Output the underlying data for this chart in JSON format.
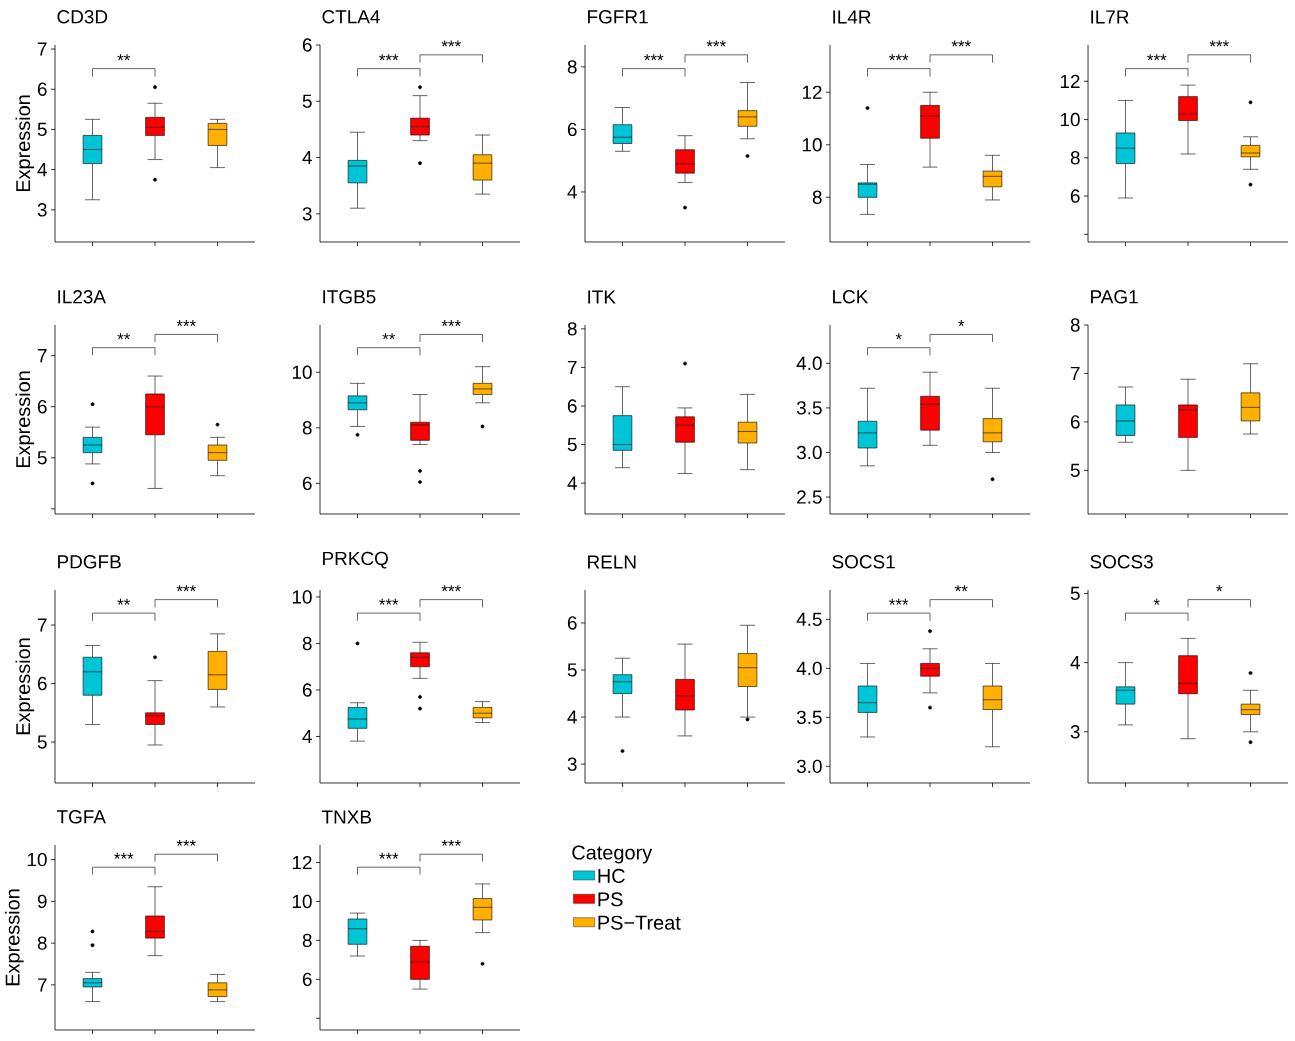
{
  "chart_data": [
    {
      "type": "box",
      "title": "CD3D",
      "ylabel": "Expression",
      "categories": [
        null,
        null,
        null
      ],
      "tick_labels": "y",
      "ylim": [
        2.2,
        7.1
      ],
      "yticks": [
        3,
        4,
        5,
        6,
        7
      ],
      "annotations": [
        "**"
      ],
      "series": [
        {
          "color": "#00c5d6",
          "boxes": [
            {
              "low": 3.25,
              "q1": 4.15,
              "median": 4.5,
              "q3": 4.85,
              "high": 5.25
            },
            null,
            null
          ]
        },
        {
          "color": "#ff0000",
          "boxes": [
            null,
            {
              "low": 4.25,
              "q1": 4.85,
              "median": 5.05,
              "q3": 5.3,
              "high": 5.65,
              "outliers": [
                6.05,
                3.75
              ]
            },
            null
          ]
        },
        {
          "color": "#ffb000",
          "boxes": [
            null,
            null,
            {
              "low": 4.05,
              "q1": 4.6,
              "median": 5.0,
              "q3": 5.15,
              "high": 5.25
            }
          ]
        }
      ]
    },
    {
      "type": "box",
      "title": "CTLA4",
      "categories": [
        null,
        null,
        null
      ],
      "tick_labels": "y",
      "ylim": [
        2.5,
        6.0
      ],
      "yticks": [
        3,
        4,
        5,
        6
      ],
      "annotations": [
        "***",
        "***"
      ],
      "series": [
        {
          "color": "#00c5d6",
          "boxes": [
            {
              "low": 3.1,
              "q1": 3.55,
              "median": 3.85,
              "q3": 3.95,
              "high": 4.45
            },
            null,
            null
          ]
        },
        {
          "color": "#ff0000",
          "boxes": [
            null,
            {
              "low": 4.3,
              "q1": 4.4,
              "median": 4.55,
              "q3": 4.7,
              "high": 5.1,
              "outliers": [
                5.25,
                3.9
              ]
            },
            null
          ]
        },
        {
          "color": "#ffb000",
          "boxes": [
            null,
            null,
            {
              "low": 3.35,
              "q1": 3.6,
              "median": 3.9,
              "q3": 4.05,
              "high": 4.4
            }
          ]
        }
      ]
    },
    {
      "type": "box",
      "title": "FGFR1",
      "categories": [
        null,
        null,
        null
      ],
      "tick_labels": "y",
      "ylim": [
        2.4,
        8.7
      ],
      "yticks": [
        4,
        6,
        8
      ],
      "annotations": [
        "***",
        "***"
      ],
      "series": [
        {
          "color": "#00c5d6",
          "boxes": [
            {
              "low": 5.3,
              "q1": 5.55,
              "median": 5.75,
              "q3": 6.15,
              "high": 6.7
            },
            null,
            null
          ]
        },
        {
          "color": "#ff0000",
          "boxes": [
            null,
            {
              "low": 4.3,
              "q1": 4.6,
              "median": 4.9,
              "q3": 5.35,
              "high": 5.8,
              "outliers": [
                3.5
              ]
            },
            null
          ]
        },
        {
          "color": "#ffb000",
          "boxes": [
            null,
            null,
            {
              "low": 5.7,
              "q1": 6.1,
              "median": 6.4,
              "q3": 6.6,
              "high": 7.5,
              "outliers": [
                5.15
              ]
            }
          ]
        }
      ]
    },
    {
      "type": "box",
      "title": "IL4R",
      "categories": [
        null,
        null,
        null
      ],
      "tick_labels": "y",
      "ylim": [
        6.3,
        13.8
      ],
      "yticks": [
        8,
        10,
        12
      ],
      "annotations": [
        "***",
        "***"
      ],
      "series": [
        {
          "color": "#00c5d6",
          "boxes": [
            {
              "low": 7.35,
              "q1": 8.0,
              "median": 8.5,
              "q3": 8.55,
              "high": 9.25,
              "outliers": [
                11.4
              ]
            },
            null,
            null
          ]
        },
        {
          "color": "#ff0000",
          "boxes": [
            null,
            {
              "low": 9.15,
              "q1": 10.25,
              "median": 11.1,
              "q3": 11.5,
              "high": 12.0
            },
            null
          ]
        },
        {
          "color": "#ffb000",
          "boxes": [
            null,
            null,
            {
              "low": 7.9,
              "q1": 8.4,
              "median": 8.8,
              "q3": 9.0,
              "high": 9.6
            }
          ]
        }
      ]
    },
    {
      "type": "box",
      "title": "IL7R",
      "categories": [
        null,
        null,
        null
      ],
      "tick_labels": "y",
      "ylim": [
        3.6,
        13.9
      ],
      "yticks": [
        {
          "value": 4,
          "label": null
        },
        6,
        8,
        10,
        12
      ],
      "annotations": [
        "***",
        "***"
      ],
      "series": [
        {
          "color": "#00c5d6",
          "boxes": [
            {
              "low": 5.9,
              "q1": 7.7,
              "median": 8.5,
              "q3": 9.3,
              "high": 11.0
            },
            null,
            null
          ]
        },
        {
          "color": "#ff0000",
          "boxes": [
            null,
            {
              "low": 8.2,
              "q1": 9.95,
              "median": 10.3,
              "q3": 11.2,
              "high": 11.8
            },
            null
          ]
        },
        {
          "color": "#ffb000",
          "boxes": [
            null,
            null,
            {
              "low": 7.4,
              "q1": 8.05,
              "median": 8.25,
              "q3": 8.65,
              "high": 9.1,
              "outliers": [
                10.9,
                6.6
              ]
            }
          ]
        }
      ]
    },
    {
      "type": "box",
      "title": "IL23A",
      "ylabel": "Expression",
      "categories": [
        null,
        null,
        null
      ],
      "tick_labels": "y",
      "ylim": [
        3.9,
        7.6
      ],
      "yticks": [
        {
          "value": 4,
          "label": null
        },
        5,
        6,
        7
      ],
      "annotations": [
        "**",
        "***"
      ],
      "series": [
        {
          "color": "#00c5d6",
          "boxes": [
            {
              "low": 4.88,
              "q1": 5.1,
              "median": 5.25,
              "q3": 5.4,
              "high": 5.6,
              "outliers": [
                6.05,
                4.5
              ]
            },
            null,
            null
          ]
        },
        {
          "color": "#ff0000",
          "boxes": [
            null,
            {
              "low": 4.4,
              "q1": 5.45,
              "median": 6.0,
              "q3": 6.25,
              "high": 6.6
            },
            null
          ]
        },
        {
          "color": "#ffb000",
          "boxes": [
            null,
            null,
            {
              "low": 4.65,
              "q1": 4.95,
              "median": 5.1,
              "q3": 5.25,
              "high": 5.4,
              "outliers": [
                5.65
              ]
            }
          ]
        }
      ]
    },
    {
      "type": "box",
      "title": "ITGB5",
      "categories": [
        null,
        null,
        null
      ],
      "tick_labels": "y",
      "ylim": [
        4.9,
        11.7
      ],
      "yticks": [
        6,
        8,
        10
      ],
      "annotations": [
        "**",
        "***"
      ],
      "series": [
        {
          "color": "#00c5d6",
          "boxes": [
            {
              "low": 8.05,
              "q1": 8.65,
              "median": 8.9,
              "q3": 9.15,
              "high": 9.6,
              "outliers": [
                7.75
              ]
            },
            null,
            null
          ]
        },
        {
          "color": "#ff0000",
          "boxes": [
            null,
            {
              "low": 7.4,
              "q1": 7.55,
              "median": 8.1,
              "q3": 8.2,
              "high": 9.2,
              "outliers": [
                6.45,
                6.05
              ]
            },
            null
          ]
        },
        {
          "color": "#ffb000",
          "boxes": [
            null,
            null,
            {
              "low": 8.9,
              "q1": 9.2,
              "median": 9.4,
              "q3": 9.6,
              "high": 10.2,
              "outliers": [
                8.05
              ]
            }
          ]
        }
      ]
    },
    {
      "type": "box",
      "title": "ITK",
      "categories": [
        null,
        null,
        null
      ],
      "tick_labels": "y",
      "ylim": [
        3.2,
        8.1
      ],
      "yticks": [
        4,
        5,
        6,
        7,
        8
      ],
      "series": [
        {
          "color": "#00c5d6",
          "boxes": [
            {
              "low": 4.4,
              "q1": 4.85,
              "median": 5.0,
              "q3": 5.75,
              "high": 6.5
            },
            null,
            null
          ]
        },
        {
          "color": "#ff0000",
          "boxes": [
            null,
            {
              "low": 4.25,
              "q1": 5.06,
              "median": 5.5,
              "q3": 5.72,
              "high": 5.95,
              "outliers": [
                7.1
              ]
            },
            null
          ]
        },
        {
          "color": "#ffb000",
          "boxes": [
            null,
            null,
            {
              "low": 4.35,
              "q1": 5.04,
              "median": 5.34,
              "q3": 5.58,
              "high": 6.3
            }
          ]
        }
      ]
    },
    {
      "type": "box",
      "title": "LCK",
      "categories": [
        null,
        null,
        null
      ],
      "tick_labels": "y",
      "ylim": [
        2.31,
        4.43
      ],
      "yticks": [
        {
          "value": 2.5,
          "label": "2.5"
        },
        {
          "value": 3,
          "label": "3.0"
        },
        {
          "value": 3.5,
          "label": "3.5"
        },
        {
          "value": 4,
          "label": "4.0"
        }
      ],
      "annotations": [
        "*",
        "*"
      ],
      "series": [
        {
          "color": "#00c5d6",
          "boxes": [
            {
              "low": 2.85,
              "q1": 3.05,
              "median": 3.22,
              "q3": 3.35,
              "high": 3.72
            },
            null,
            null
          ]
        },
        {
          "color": "#ff0000",
          "boxes": [
            null,
            {
              "low": 3.08,
              "q1": 3.25,
              "median": 3.54,
              "q3": 3.63,
              "high": 3.9
            },
            null
          ]
        },
        {
          "color": "#ffb000",
          "boxes": [
            null,
            null,
            {
              "low": 3.0,
              "q1": 3.12,
              "median": 3.22,
              "q3": 3.38,
              "high": 3.72,
              "outliers": [
                2.7
              ]
            }
          ]
        }
      ]
    },
    {
      "type": "box",
      "title": "PAG1",
      "categories": [
        null,
        null,
        null
      ],
      "tick_labels": "y",
      "ylim": [
        4.1,
        8.0
      ],
      "yticks": [
        5,
        6,
        7,
        8
      ],
      "series": [
        {
          "color": "#00c5d6",
          "boxes": [
            {
              "low": 5.58,
              "q1": 5.72,
              "median": 6.02,
              "q3": 6.35,
              "high": 6.72
            },
            null,
            null
          ]
        },
        {
          "color": "#ff0000",
          "boxes": [
            null,
            {
              "low": 5.0,
              "q1": 5.68,
              "median": 6.25,
              "q3": 6.35,
              "high": 6.88
            },
            null
          ]
        },
        {
          "color": "#ffb000",
          "boxes": [
            null,
            null,
            {
              "low": 5.75,
              "q1": 6.02,
              "median": 6.3,
              "q3": 6.6,
              "high": 7.2
            }
          ]
        }
      ]
    },
    {
      "type": "box",
      "title": "PDGFB",
      "ylabel": "Expression",
      "categories": [
        null,
        null,
        null
      ],
      "tick_labels": "y",
      "ylim": [
        4.3,
        7.6
      ],
      "yticks": [
        5,
        6,
        7
      ],
      "annotations": [
        "**",
        "***"
      ],
      "series": [
        {
          "color": "#00c5d6",
          "boxes": [
            {
              "low": 5.3,
              "q1": 5.8,
              "median": 6.2,
              "q3": 6.45,
              "high": 6.65
            },
            null,
            null
          ]
        },
        {
          "color": "#ff0000",
          "boxes": [
            null,
            {
              "low": 4.95,
              "q1": 5.3,
              "median": 5.45,
              "q3": 5.5,
              "high": 6.05,
              "outliers": [
                6.45
              ]
            },
            null
          ]
        },
        {
          "color": "#ffb000",
          "boxes": [
            null,
            null,
            {
              "low": 5.6,
              "q1": 5.9,
              "median": 6.15,
              "q3": 6.55,
              "high": 6.85
            }
          ]
        }
      ]
    },
    {
      "type": "box",
      "title": "PRKCQ",
      "categories": [
        null,
        null,
        null
      ],
      "tick_labels": "y",
      "ylim": [
        2.0,
        10.3
      ],
      "yticks": [
        4,
        6,
        8,
        10
      ],
      "annotations": [
        "***",
        "***"
      ],
      "series": [
        {
          "color": "#00c5d6",
          "boxes": [
            {
              "low": 3.8,
              "q1": 4.35,
              "median": 4.75,
              "q3": 5.25,
              "high": 5.45,
              "outliers": [
                8.0
              ]
            },
            null,
            null
          ]
        },
        {
          "color": "#ff0000",
          "boxes": [
            null,
            {
              "low": 6.5,
              "q1": 7.0,
              "median": 7.4,
              "q3": 7.6,
              "high": 8.05,
              "outliers": [
                5.7,
                5.2
              ]
            },
            null
          ]
        },
        {
          "color": "#ffb000",
          "boxes": [
            null,
            null,
            {
              "low": 4.6,
              "q1": 4.8,
              "median": 5.0,
              "q3": 5.25,
              "high": 5.5
            }
          ]
        }
      ]
    },
    {
      "type": "box",
      "title": "RELN",
      "categories": [
        null,
        null,
        null
      ],
      "tick_labels": "y",
      "ylim": [
        2.6,
        6.7
      ],
      "yticks": [
        3,
        4,
        5,
        6
      ],
      "series": [
        {
          "color": "#00c5d6",
          "boxes": [
            {
              "low": 4.0,
              "q1": 4.5,
              "median": 4.75,
              "q3": 4.9,
              "high": 5.25,
              "outliers": [
                3.28
              ]
            },
            null,
            null
          ]
        },
        {
          "color": "#ff0000",
          "boxes": [
            null,
            {
              "low": 3.6,
              "q1": 4.15,
              "median": 4.45,
              "q3": 4.8,
              "high": 5.55
            },
            null
          ]
        },
        {
          "color": "#ffb000",
          "boxes": [
            null,
            null,
            {
              "low": 4.0,
              "q1": 4.65,
              "median": 5.05,
              "q3": 5.35,
              "high": 5.95,
              "outliers": [
                3.95
              ]
            }
          ]
        }
      ]
    },
    {
      "type": "box",
      "title": "SOCS1",
      "categories": [
        null,
        null,
        null
      ],
      "tick_labels": "y",
      "ylim": [
        2.83,
        4.8
      ],
      "yticks": [
        {
          "value": 3,
          "label": "3.0"
        },
        {
          "value": 3.5,
          "label": "3.5"
        },
        {
          "value": 4,
          "label": "4.0"
        },
        {
          "value": 4.5,
          "label": "4.5"
        }
      ],
      "annotations": [
        "***",
        "**"
      ],
      "series": [
        {
          "color": "#00c5d6",
          "boxes": [
            {
              "low": 3.3,
              "q1": 3.55,
              "median": 3.65,
              "q3": 3.82,
              "high": 4.05
            },
            null,
            null
          ]
        },
        {
          "color": "#ff0000",
          "boxes": [
            null,
            {
              "low": 3.75,
              "q1": 3.92,
              "median": 4.0,
              "q3": 4.05,
              "high": 4.2,
              "outliers": [
                4.38,
                3.6
              ]
            },
            null
          ]
        },
        {
          "color": "#ffb000",
          "boxes": [
            null,
            null,
            {
              "low": 3.2,
              "q1": 3.58,
              "median": 3.68,
              "q3": 3.82,
              "high": 4.05
            }
          ]
        }
      ]
    },
    {
      "type": "box",
      "title": "SOCS3",
      "categories": [
        null,
        null,
        null
      ],
      "tick_labels": "y",
      "ylim": [
        2.26,
        5.05
      ],
      "yticks": [
        3,
        4,
        5
      ],
      "annotations": [
        "*",
        "*"
      ],
      "series": [
        {
          "color": "#00c5d6",
          "boxes": [
            {
              "low": 3.1,
              "q1": 3.4,
              "median": 3.6,
              "q3": 3.65,
              "high": 4.0
            },
            null,
            null
          ]
        },
        {
          "color": "#ff0000",
          "boxes": [
            null,
            {
              "low": 2.9,
              "q1": 3.55,
              "median": 3.7,
              "q3": 4.1,
              "high": 4.35
            },
            null
          ]
        },
        {
          "color": "#ffb000",
          "boxes": [
            null,
            null,
            {
              "low": 3.0,
              "q1": 3.25,
              "median": 3.32,
              "q3": 3.4,
              "high": 3.6,
              "outliers": [
                3.85,
                2.85
              ]
            }
          ]
        }
      ]
    },
    {
      "type": "box",
      "title": "TGFA",
      "ylabel": "Expression",
      "categories": [
        null,
        null,
        null
      ],
      "tick_labels": "y",
      "ylim": [
        5.92,
        10.35
      ],
      "yticks": [
        7,
        8,
        9,
        10
      ],
      "annotations": [
        "***",
        "***"
      ],
      "series": [
        {
          "color": "#00c5d6",
          "boxes": [
            {
              "low": 6.6,
              "q1": 6.95,
              "median": 7.05,
              "q3": 7.15,
              "high": 7.3,
              "outliers": [
                8.28,
                7.95
              ]
            },
            null,
            null
          ]
        },
        {
          "color": "#ff0000",
          "boxes": [
            null,
            {
              "low": 7.7,
              "q1": 8.12,
              "median": 8.28,
              "q3": 8.65,
              "high": 9.35
            },
            null
          ]
        },
        {
          "color": "#ffb000",
          "boxes": [
            null,
            null,
            {
              "low": 6.6,
              "q1": 6.72,
              "median": 6.88,
              "q3": 7.05,
              "high": 7.25
            }
          ]
        }
      ]
    },
    {
      "type": "box",
      "title": "TNXB",
      "categories": [
        null,
        null,
        null
      ],
      "tick_labels": "y",
      "ylim": [
        3.4,
        12.9
      ],
      "yticks": [
        {
          "value": 4,
          "label": null
        },
        6,
        8,
        10,
        12
      ],
      "annotations": [
        "***",
        "***"
      ],
      "legend": "right",
      "legend_title": "Category",
      "series": [
        {
          "name": "HC",
          "color": "#00c5d6",
          "boxes": [
            {
              "low": 7.2,
              "q1": 7.8,
              "median": 8.6,
              "q3": 9.1,
              "high": 9.4
            },
            null,
            null
          ]
        },
        {
          "name": "PS",
          "color": "#ff0000",
          "boxes": [
            null,
            {
              "low": 5.5,
              "q1": 6.0,
              "median": 6.9,
              "q3": 7.7,
              "high": 8.0
            },
            null
          ]
        },
        {
          "name": "PS−Treat",
          "color": "#ffb000",
          "boxes": [
            null,
            null,
            {
              "low": 8.4,
              "q1": 9.05,
              "median": 9.7,
              "q3": 10.15,
              "high": 10.9,
              "outliers": [
                6.8
              ]
            }
          ]
        }
      ]
    }
  ]
}
